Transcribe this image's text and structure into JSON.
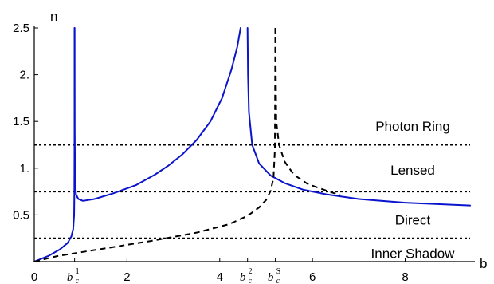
{
  "chart_data": {
    "type": "line",
    "title": "",
    "xlabel": "b",
    "ylabel": "n",
    "xlim": [
      0,
      9.4
    ],
    "ylim": [
      0,
      2.5
    ],
    "grid": false,
    "x_ticks": [
      {
        "value": 0,
        "label": "0"
      },
      {
        "value": 2,
        "label": "2"
      },
      {
        "value": 4,
        "label": "4"
      },
      {
        "value": 6,
        "label": "6"
      },
      {
        "value": 8,
        "label": "8"
      }
    ],
    "x_special_ticks": [
      {
        "value": 0.87,
        "base": "b",
        "sub": "c",
        "sup": "1"
      },
      {
        "value": 4.6,
        "base": "b",
        "sub": "c",
        "sup": "2"
      },
      {
        "value": 5.2,
        "base": "b",
        "sub": "c",
        "sup": "S"
      }
    ],
    "y_ticks": [
      {
        "value": 0.5,
        "label": "0.5"
      },
      {
        "value": 1.0,
        "label": "1."
      },
      {
        "value": 1.5,
        "label": "1.5"
      },
      {
        "value": 2.0,
        "label": "2."
      },
      {
        "value": 2.5,
        "label": "2.5"
      }
    ],
    "thresholds": [
      0.25,
      0.75,
      1.25
    ],
    "regions": [
      {
        "label": "Photon Ring",
        "y": 1.45
      },
      {
        "label": "Lensed",
        "y": 0.98
      },
      {
        "label": "Direct",
        "y": 0.45
      },
      {
        "label": "Inner Shadow",
        "y": 0.09
      }
    ],
    "series": [
      {
        "style": "solid",
        "color": "#0a14cc",
        "segments": [
          [
            [
              0,
              0
            ],
            [
              0.3,
              0.06
            ],
            [
              0.55,
              0.13
            ],
            [
              0.72,
              0.2
            ],
            [
              0.8,
              0.27
            ],
            [
              0.84,
              0.35
            ],
            [
              0.86,
              0.5
            ],
            [
              0.865,
              0.75
            ],
            [
              0.868,
              1.25
            ],
            [
              0.869,
              2.5
            ]
          ],
          [
            [
              0.87,
              2.5
            ],
            [
              0.873,
              1.4
            ],
            [
              0.88,
              0.9
            ],
            [
              0.9,
              0.72
            ],
            [
              0.95,
              0.67
            ],
            [
              1.05,
              0.65
            ],
            [
              1.3,
              0.67
            ],
            [
              1.7,
              0.73
            ],
            [
              2.2,
              0.82
            ],
            [
              2.6,
              0.93
            ],
            [
              2.9,
              1.03
            ],
            [
              3.2,
              1.15
            ],
            [
              3.5,
              1.3
            ],
            [
              3.8,
              1.5
            ],
            [
              4.05,
              1.75
            ],
            [
              4.25,
              2.05
            ],
            [
              4.38,
              2.3
            ],
            [
              4.45,
              2.5
            ]
          ],
          [
            [
              4.6,
              2.5
            ],
            [
              4.61,
              2.0
            ],
            [
              4.63,
              1.6
            ],
            [
              4.7,
              1.25
            ],
            [
              4.85,
              1.05
            ],
            [
              5.1,
              0.92
            ],
            [
              5.4,
              0.84
            ],
            [
              5.8,
              0.77
            ],
            [
              6.3,
              0.72
            ],
            [
              7.0,
              0.67
            ],
            [
              8.0,
              0.63
            ],
            [
              9.4,
              0.6
            ]
          ]
        ]
      },
      {
        "style": "dashed",
        "color": "#000000",
        "segments": [
          [
            [
              0,
              0
            ],
            [
              0.5,
              0.06
            ],
            [
              1.5,
              0.14
            ],
            [
              2.5,
              0.22
            ],
            [
              3.5,
              0.31
            ],
            [
              4.2,
              0.4
            ],
            [
              4.6,
              0.49
            ],
            [
              4.85,
              0.58
            ],
            [
              5.0,
              0.66
            ],
            [
              5.1,
              0.76
            ],
            [
              5.16,
              0.9
            ],
            [
              5.19,
              1.2
            ],
            [
              5.2,
              2.5
            ]
          ],
          [
            [
              5.2,
              2.5
            ],
            [
              5.22,
              1.5
            ],
            [
              5.28,
              1.25
            ],
            [
              5.4,
              1.07
            ],
            [
              5.6,
              0.93
            ],
            [
              5.9,
              0.83
            ],
            [
              6.3,
              0.76
            ],
            [
              6.6,
              0.71
            ]
          ]
        ]
      }
    ]
  }
}
